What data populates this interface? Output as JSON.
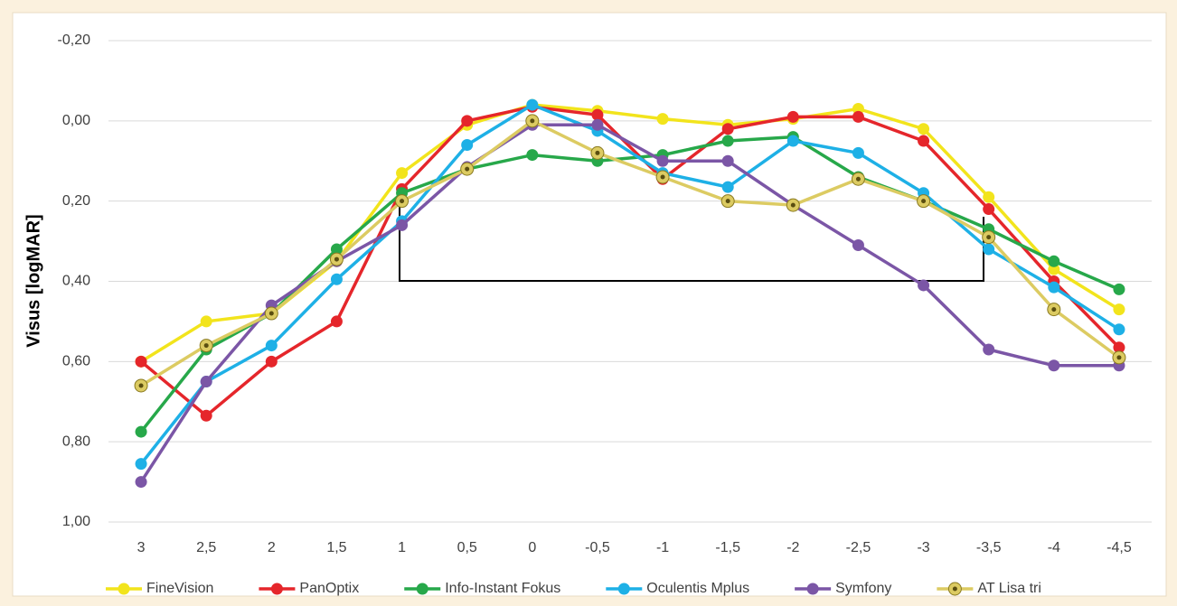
{
  "chart_data": {
    "type": "line",
    "y_label": "Visus [logMAR]",
    "categories": [
      "3",
      "2,5",
      "2",
      "1,5",
      "1",
      "0,5",
      "0",
      "-0,5",
      "-1",
      "-1,5",
      "-2",
      "-2,5",
      "-3",
      "-3,5",
      "-4",
      "-4,5"
    ],
    "ylim": [
      -0.2,
      1.0
    ],
    "y_inverted": true,
    "yticks": [
      {
        "value": -0.2,
        "label": "-0,20"
      },
      {
        "value": 0,
        "label": "0,00"
      },
      {
        "value": 0.2,
        "label": "0,20"
      },
      {
        "value": 0.4,
        "label": "0,40"
      },
      {
        "value": 0.6,
        "label": "0,60"
      },
      {
        "value": 0.8,
        "label": "0,80"
      },
      {
        "value": 1.0,
        "label": "1,00"
      }
    ],
    "grid": true,
    "legend": "bottom",
    "series": [
      {
        "name": "FineVision",
        "color": "#f2e41c",
        "values": [
          0.6,
          0.5,
          0.48,
          0.35,
          0.13,
          0.01,
          -0.04,
          -0.025,
          -0.005,
          0.01,
          -0.005,
          -0.03,
          0.02,
          0.19,
          0.37,
          0.47
        ]
      },
      {
        "name": "PanOptix",
        "color": "#e5262b",
        "values": [
          0.6,
          0.735,
          0.6,
          0.5,
          0.17,
          0.0,
          -0.035,
          -0.015,
          0.145,
          0.02,
          -0.01,
          -0.01,
          0.05,
          0.22,
          0.4,
          0.565
        ]
      },
      {
        "name": "Info-Instant Fokus",
        "color": "#27a84a",
        "values": [
          0.775,
          0.57,
          0.48,
          0.32,
          0.18,
          0.12,
          0.085,
          0.1,
          0.085,
          0.05,
          0.04,
          0.14,
          0.2,
          0.27,
          0.35,
          0.42
        ]
      },
      {
        "name": "Oculentis Mplus",
        "color": "#1eb0e6",
        "values": [
          0.855,
          0.65,
          0.56,
          0.395,
          0.25,
          0.06,
          -0.04,
          0.025,
          0.13,
          0.165,
          0.05,
          0.08,
          0.18,
          0.32,
          0.415,
          0.52
        ]
      },
      {
        "name": "Symfony",
        "color": "#7b56a6",
        "values": [
          0.9,
          0.65,
          0.46,
          0.35,
          0.26,
          0.115,
          0.01,
          0.01,
          0.1,
          0.1,
          0.21,
          0.31,
          0.41,
          0.57,
          0.61,
          0.61
        ]
      },
      {
        "name": "AT Lisa tri",
        "color": "#dccb62",
        "marker": "ring",
        "values": [
          0.66,
          0.56,
          0.48,
          0.345,
          0.2,
          0.12,
          0.0,
          0.08,
          0.14,
          0.2,
          0.21,
          0.145,
          0.2,
          0.29,
          0.47,
          0.59
        ]
      }
    ]
  }
}
